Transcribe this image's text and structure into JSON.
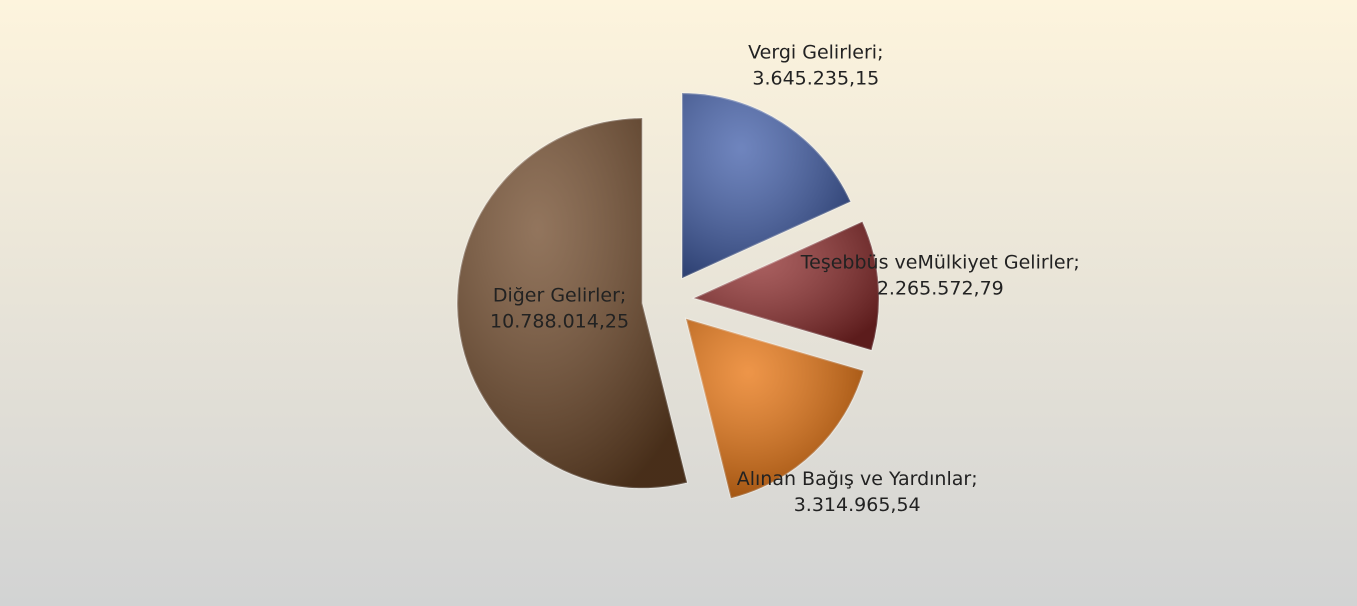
{
  "chart_data": {
    "type": "pie",
    "categories": [
      "Vergi Gelirleri;",
      "Teşebbüs veMülkiyet Gelirler;",
      "Alınan Bağış ve Yardınlar;",
      "Diğer Gelirler;"
    ],
    "values": [
      3645235.15,
      2265572.79,
      3314965.54,
      10788014.25
    ],
    "value_labels": [
      "3.645.235,15",
      "2.265.572,79",
      "3.314.965,54",
      "10.788.014,25"
    ],
    "colors": [
      "#3f5ca8",
      "#8e2b2b",
      "#e8720c",
      "#6e4727"
    ]
  }
}
